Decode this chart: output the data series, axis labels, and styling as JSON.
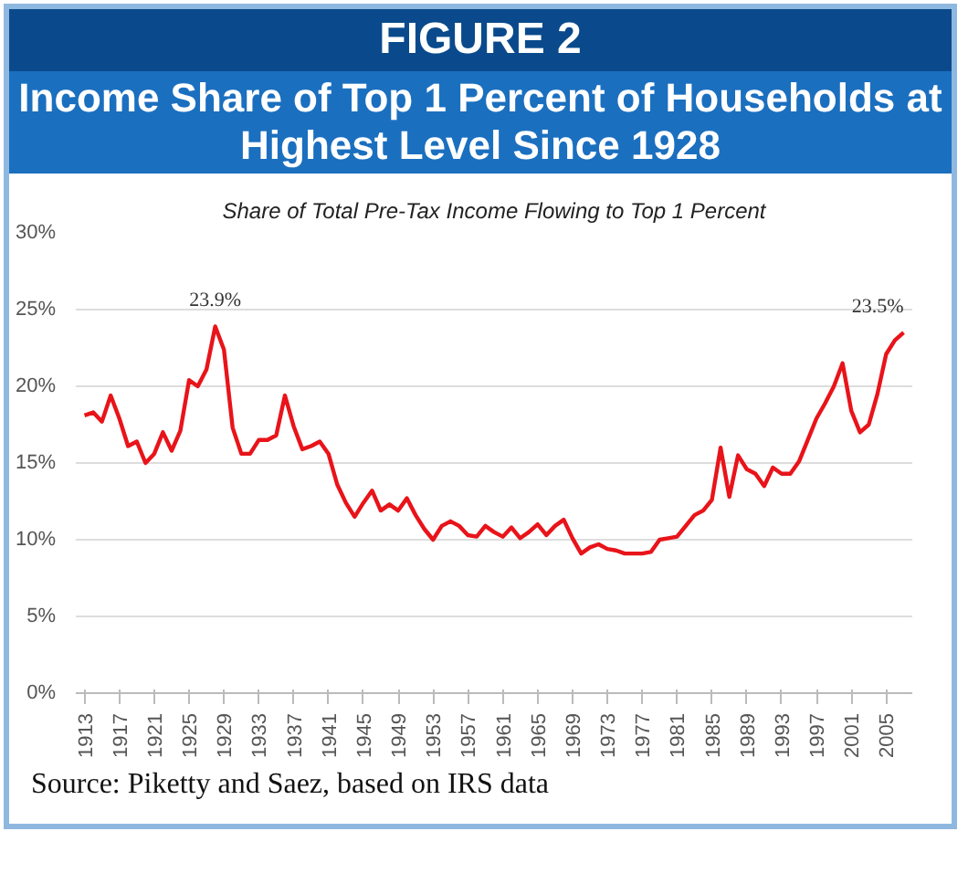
{
  "chart_data": {
    "type": "line",
    "title": "Income Share of Top 1 Percent of Households at Highest Level Since 1928",
    "subtitle": "Share of Total Pre-Tax Income Flowing to Top 1 Percent",
    "annotations": [
      "FIGURE 2",
      "Source: Piketty and Saez, based on IRS data"
    ],
    "x": [
      1913,
      1914,
      1915,
      1916,
      1917,
      1918,
      1919,
      1920,
      1921,
      1922,
      1923,
      1924,
      1925,
      1926,
      1927,
      1928,
      1929,
      1930,
      1931,
      1932,
      1933,
      1934,
      1935,
      1936,
      1937,
      1938,
      1939,
      1940,
      1941,
      1942,
      1943,
      1944,
      1945,
      1946,
      1947,
      1948,
      1949,
      1950,
      1951,
      1952,
      1953,
      1954,
      1955,
      1956,
      1957,
      1958,
      1959,
      1960,
      1961,
      1962,
      1963,
      1964,
      1965,
      1966,
      1967,
      1968,
      1969,
      1970,
      1971,
      1972,
      1973,
      1974,
      1975,
      1976,
      1977,
      1978,
      1979,
      1980,
      1981,
      1982,
      1983,
      1984,
      1985,
      1986,
      1987,
      1988,
      1989,
      1990,
      1991,
      1992,
      1993,
      1994,
      1995,
      1996,
      1997,
      1998,
      1999,
      2000,
      2001,
      2002,
      2003,
      2004,
      2005,
      2006,
      2007
    ],
    "series": [
      {
        "color": "#e8141a",
        "values": [
          18.1,
          18.3,
          17.7,
          19.4,
          17.9,
          16.1,
          16.4,
          15.0,
          15.6,
          17.0,
          15.8,
          17.1,
          20.4,
          20.0,
          21.1,
          23.9,
          22.4,
          17.3,
          15.6,
          15.6,
          16.5,
          16.5,
          16.8,
          19.4,
          17.4,
          15.9,
          16.1,
          16.4,
          15.6,
          13.6,
          12.4,
          11.5,
          12.4,
          13.2,
          11.9,
          12.3,
          11.9,
          12.7,
          11.6,
          10.7,
          10.0,
          10.9,
          11.2,
          10.9,
          10.3,
          10.2,
          10.9,
          10.5,
          10.2,
          10.8,
          10.1,
          10.5,
          11.0,
          10.3,
          10.9,
          11.3,
          10.1,
          9.1,
          9.5,
          9.7,
          9.4,
          9.3,
          9.1,
          9.1,
          9.1,
          9.2,
          10.0,
          10.1,
          10.2,
          10.9,
          11.6,
          11.9,
          12.6,
          16.0,
          12.8,
          15.5,
          14.6,
          14.3,
          13.5,
          14.7,
          14.3,
          14.3,
          15.1,
          16.5,
          17.9,
          18.9,
          20.0,
          21.5,
          18.4,
          17.0,
          17.5,
          19.5,
          22.1,
          23.0,
          23.5
        ],
        "value_labels": [
          null,
          null,
          null,
          null,
          null,
          null,
          null,
          null,
          null,
          null,
          null,
          null,
          null,
          null,
          null,
          "23.9%",
          null,
          null,
          null,
          null,
          null,
          null,
          null,
          null,
          null,
          null,
          null,
          null,
          null,
          null,
          null,
          null,
          null,
          null,
          null,
          null,
          null,
          null,
          null,
          null,
          null,
          null,
          null,
          null,
          null,
          null,
          null,
          null,
          null,
          null,
          null,
          null,
          null,
          null,
          null,
          null,
          null,
          null,
          null,
          null,
          null,
          null,
          null,
          null,
          null,
          null,
          null,
          null,
          null,
          null,
          null,
          null,
          null,
          null,
          null,
          null,
          null,
          null,
          null,
          null,
          null,
          null,
          null,
          null,
          null,
          null,
          null,
          null,
          null,
          null,
          null,
          null,
          null,
          null,
          "23.5%"
        ]
      }
    ],
    "xlim": [
      1912,
      2008
    ],
    "ylim": [
      0,
      30
    ],
    "xticks": [
      1913,
      1917,
      1921,
      1925,
      1929,
      1933,
      1937,
      1941,
      1945,
      1949,
      1953,
      1957,
      1961,
      1965,
      1969,
      1973,
      1977,
      1981,
      1985,
      1989,
      1993,
      1997,
      2001,
      2005
    ],
    "yticks": [
      {
        "value": 0,
        "label": "0%"
      },
      {
        "value": 5,
        "label": "5%"
      },
      {
        "value": 10,
        "label": "10%"
      },
      {
        "value": 15,
        "label": "15%"
      },
      {
        "value": 20,
        "label": "20%"
      },
      {
        "value": 25,
        "label": "25%"
      },
      {
        "value": 30,
        "label": "30%"
      }
    ],
    "grid": "y",
    "marker": "none",
    "line_style": "solid"
  }
}
